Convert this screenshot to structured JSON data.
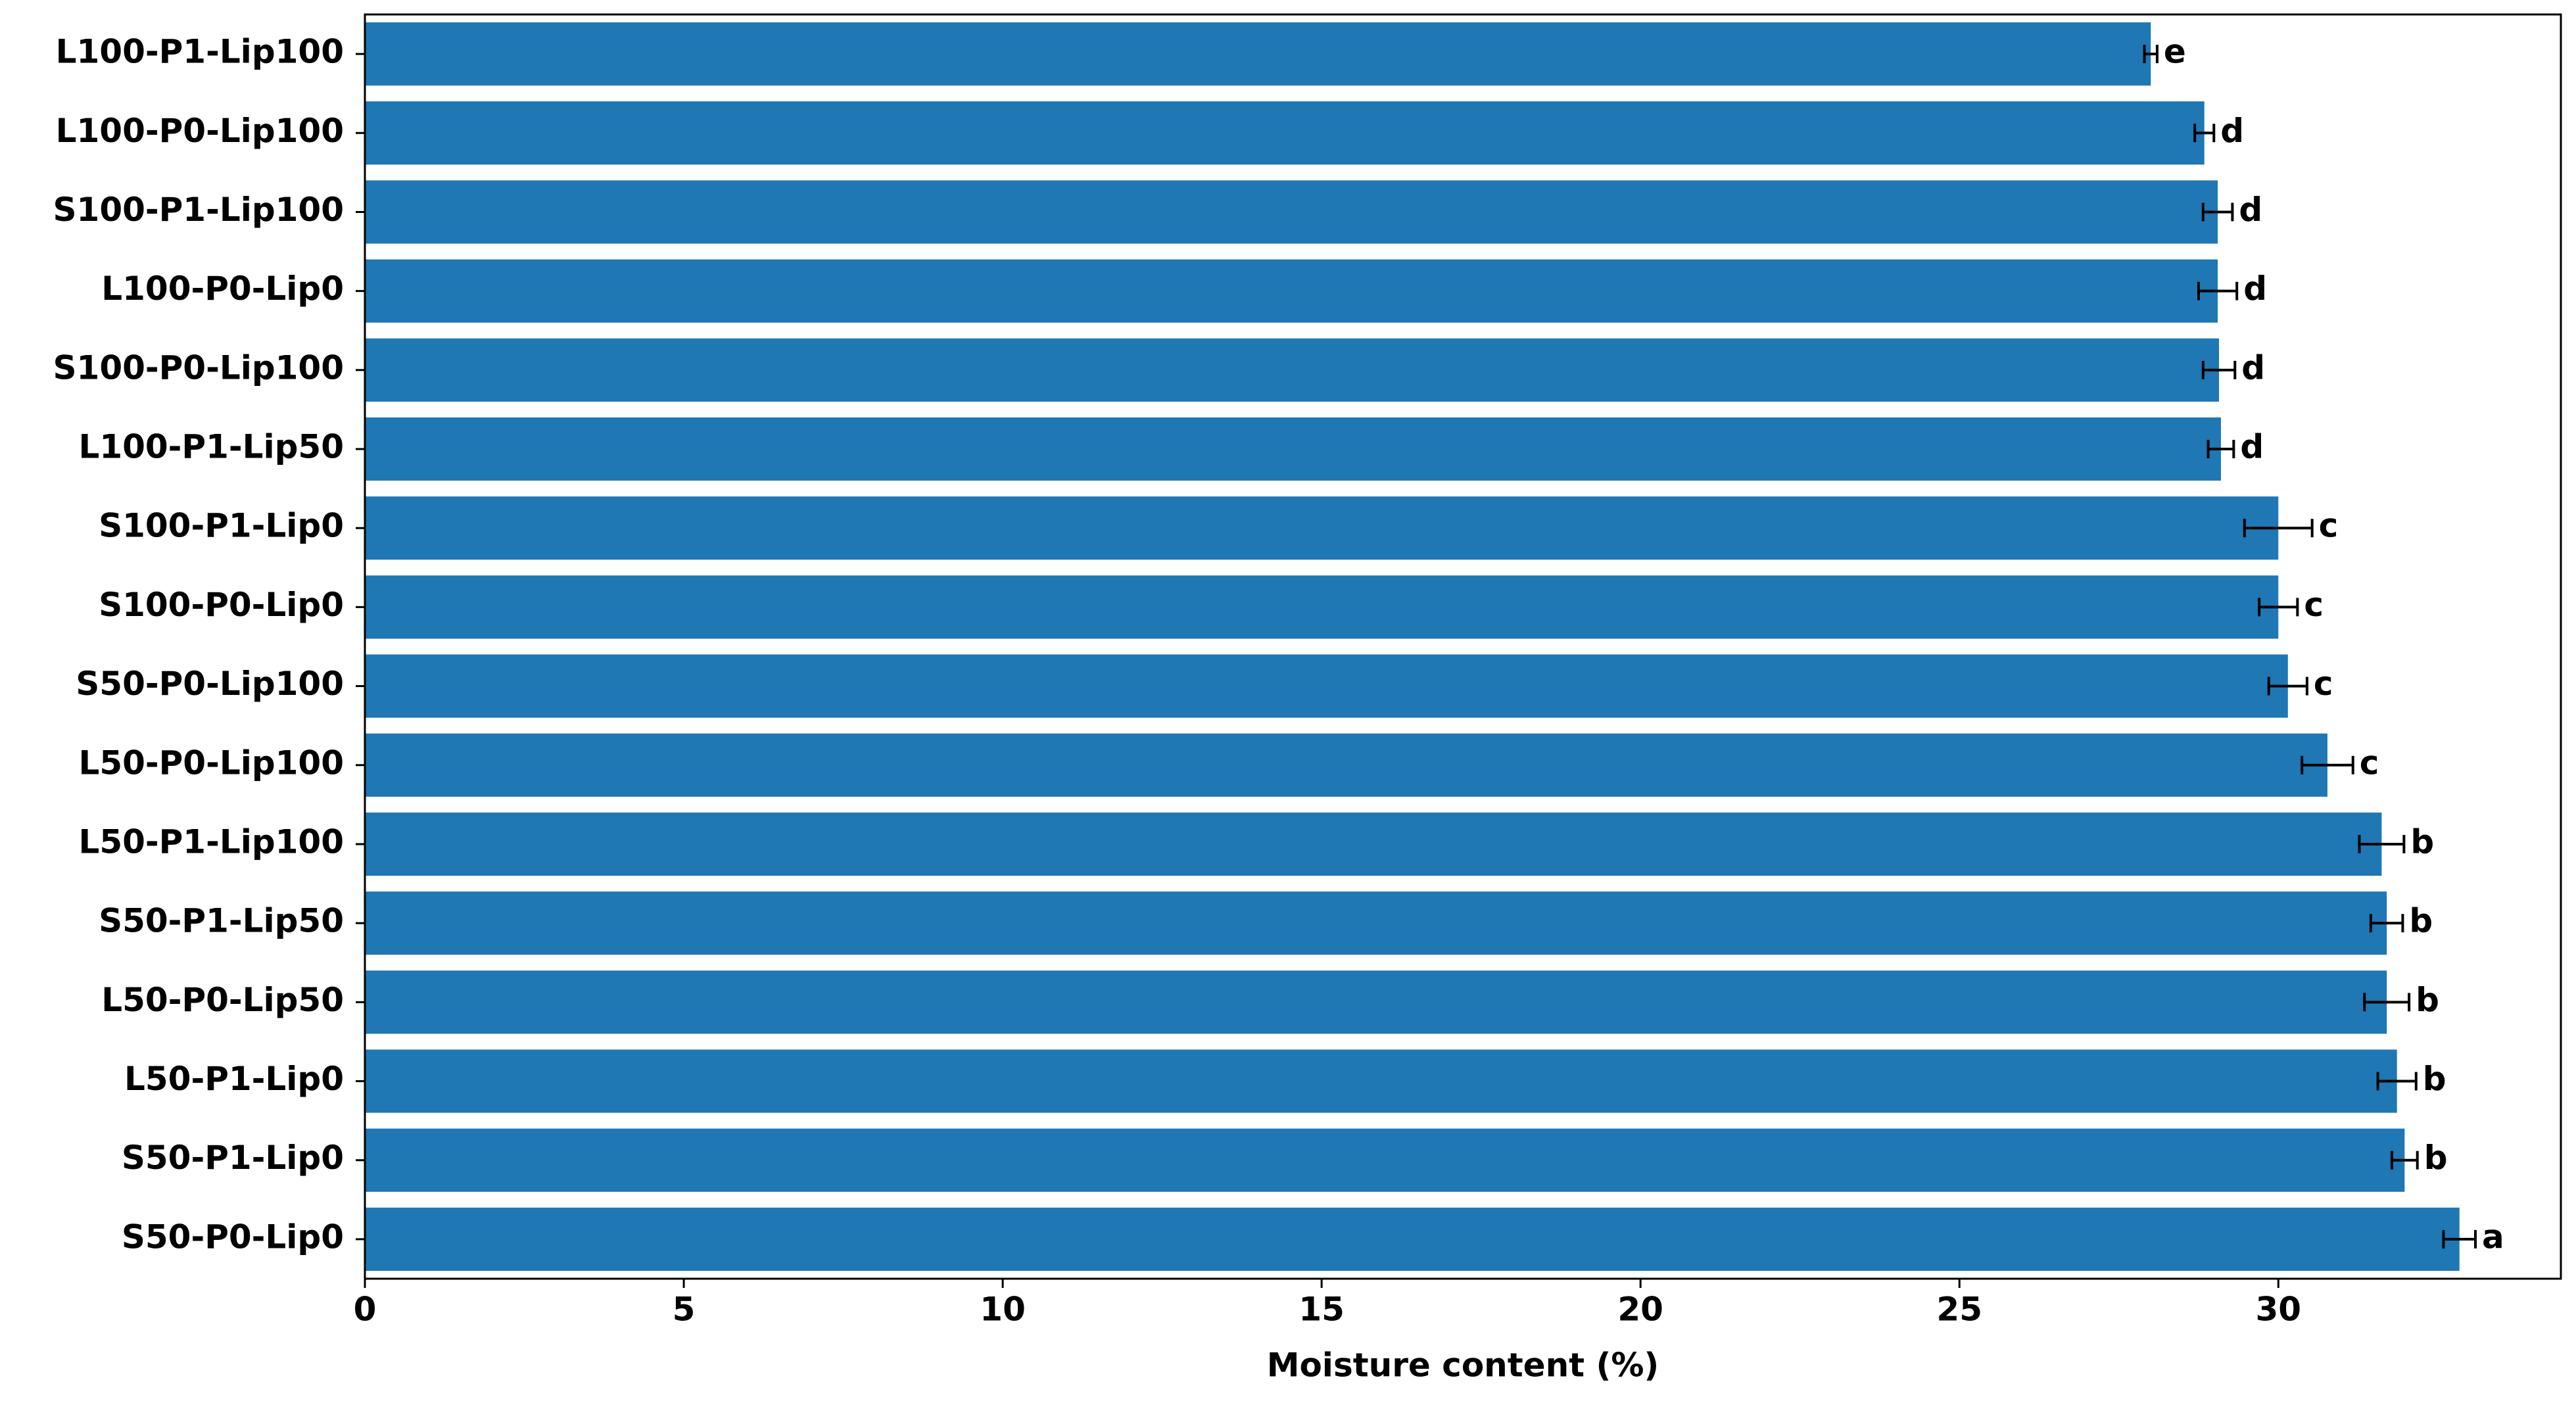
{
  "chart_data": {
    "type": "barh",
    "xlabel": "Moisture content (%)",
    "categories": [
      "L100-P1-Lip100",
      "L100-P0-Lip100",
      "S100-P1-Lip100",
      "L100-P0-Lip0",
      "S100-P0-Lip100",
      "L100-P1-Lip50",
      "S100-P1-Lip0",
      "S100-P0-Lip0",
      "S50-P0-Lip100",
      "L50-P0-Lip100",
      "L50-P1-Lip100",
      "S50-P1-Lip50",
      "L50-P0-Lip50",
      "L50-P1-Lip0",
      "S50-P1-Lip0",
      "S50-P0-Lip0"
    ],
    "values": [
      28.0,
      28.84,
      29.05,
      29.05,
      29.07,
      29.1,
      30.0,
      30.0,
      30.15,
      30.77,
      31.62,
      31.7,
      31.7,
      31.86,
      31.98,
      32.84
    ],
    "errors": [
      0.1,
      0.15,
      0.23,
      0.3,
      0.25,
      0.2,
      0.53,
      0.3,
      0.3,
      0.4,
      0.35,
      0.25,
      0.35,
      0.3,
      0.2,
      0.25
    ],
    "annotations": [
      "e",
      "d",
      "d",
      "d",
      "d",
      "d",
      "c",
      "c",
      "c",
      "c",
      "b",
      "b",
      "b",
      "b",
      "b",
      "a"
    ],
    "color": "#1f77b4",
    "xlim": [
      0,
      34.43
    ],
    "xticks": [
      0,
      5,
      10,
      15,
      20,
      25,
      30
    ]
  }
}
